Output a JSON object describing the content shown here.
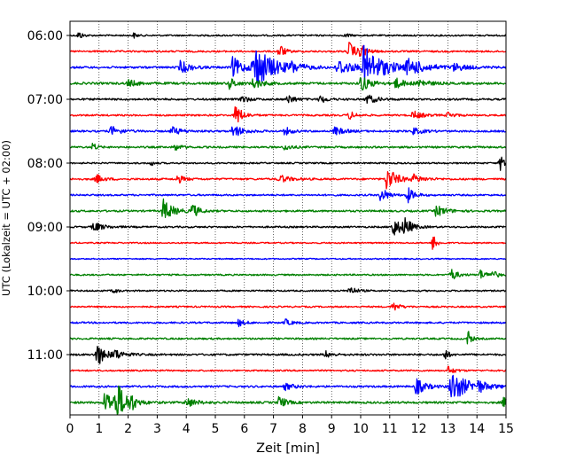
{
  "chart_data": {
    "type": "line",
    "subtype": "helicorder / seismogram drum plot",
    "xlabel": "Zeit  [min]",
    "ylabel": "UTC (Lokalzeit = UTC + 02:00)",
    "xlim": [
      0,
      15
    ],
    "x_ticks": [
      0,
      1,
      2,
      3,
      4,
      5,
      6,
      7,
      8,
      9,
      10,
      11,
      12,
      13,
      14,
      15
    ],
    "x_tick_labels": [
      "0",
      "1",
      "2",
      "3",
      "4",
      "5",
      "6",
      "7",
      "8",
      "9",
      "10",
      "11",
      "12",
      "13",
      "14",
      "15"
    ],
    "vertical_grid": "dotted at each minute",
    "y_tick_labels": [
      {
        "label": "06:00",
        "trace_index": 0
      },
      {
        "label": "07:00",
        "trace_index": 4
      },
      {
        "label": "08:00",
        "trace_index": 8
      },
      {
        "label": "09:00",
        "trace_index": 12
      },
      {
        "label": "10:00",
        "trace_index": 16
      },
      {
        "label": "11:00",
        "trace_index": 20
      }
    ],
    "line_minutes": 15,
    "trace_colors_cycle": [
      "#000000",
      "#ff0000",
      "#0000ff",
      "#008000"
    ],
    "traces": [
      {
        "index": 0,
        "start_utc": "06:00",
        "noise": 0.9,
        "events": [
          {
            "t": 0.3,
            "amp": 5,
            "dur": 0.12
          },
          {
            "t": 2.2,
            "amp": 3,
            "dur": 0.1
          },
          {
            "t": 9.5,
            "amp": 3,
            "dur": 0.1
          }
        ]
      },
      {
        "index": 1,
        "start_utc": "06:15",
        "noise": 1.0,
        "events": [
          {
            "t": 7.2,
            "amp": 10,
            "dur": 0.15
          },
          {
            "t": 9.6,
            "amp": 12,
            "dur": 0.2
          },
          {
            "t": 10.0,
            "amp": 7,
            "dur": 0.2
          }
        ]
      },
      {
        "index": 2,
        "start_utc": "06:30",
        "noise": 1.2,
        "events": [
          {
            "t": 3.8,
            "amp": 8,
            "dur": 0.3
          },
          {
            "t": 5.6,
            "amp": 12,
            "dur": 0.35
          },
          {
            "t": 6.3,
            "amp": 28,
            "dur": 0.6
          },
          {
            "t": 7.6,
            "amp": 5,
            "dur": 0.3
          },
          {
            "t": 9.2,
            "amp": 10,
            "dur": 0.5
          },
          {
            "t": 10.1,
            "amp": 25,
            "dur": 0.6
          },
          {
            "t": 11.6,
            "amp": 9,
            "dur": 0.6
          },
          {
            "t": 13.2,
            "amp": 4,
            "dur": 0.4
          }
        ]
      },
      {
        "index": 3,
        "start_utc": "06:45",
        "noise": 1.3,
        "events": [
          {
            "t": 2.0,
            "amp": 4,
            "dur": 0.3
          },
          {
            "t": 5.5,
            "amp": 7,
            "dur": 0.2
          },
          {
            "t": 6.3,
            "amp": 6,
            "dur": 0.3
          },
          {
            "t": 10.0,
            "amp": 10,
            "dur": 0.3
          },
          {
            "t": 11.2,
            "amp": 6,
            "dur": 0.3
          },
          {
            "t": 12.0,
            "amp": 5,
            "dur": 0.3
          }
        ]
      },
      {
        "index": 4,
        "start_utc": "07:00",
        "noise": 1.1,
        "events": [
          {
            "t": 5.9,
            "amp": 5,
            "dur": 0.2
          },
          {
            "t": 7.5,
            "amp": 6,
            "dur": 0.2
          },
          {
            "t": 8.6,
            "amp": 5,
            "dur": 0.2
          },
          {
            "t": 10.2,
            "amp": 6,
            "dur": 0.3
          }
        ]
      },
      {
        "index": 5,
        "start_utc": "07:15",
        "noise": 1.0,
        "events": [
          {
            "t": 5.7,
            "amp": 14,
            "dur": 0.2
          },
          {
            "t": 9.6,
            "amp": 5,
            "dur": 0.2
          },
          {
            "t": 11.8,
            "amp": 5,
            "dur": 0.3
          },
          {
            "t": 13.0,
            "amp": 4,
            "dur": 0.2
          }
        ]
      },
      {
        "index": 6,
        "start_utc": "07:30",
        "noise": 1.1,
        "events": [
          {
            "t": 1.4,
            "amp": 6,
            "dur": 0.3
          },
          {
            "t": 3.5,
            "amp": 5,
            "dur": 0.3
          },
          {
            "t": 5.6,
            "amp": 8,
            "dur": 0.3
          },
          {
            "t": 7.4,
            "amp": 5,
            "dur": 0.2
          },
          {
            "t": 9.1,
            "amp": 5,
            "dur": 0.3
          },
          {
            "t": 11.8,
            "amp": 4,
            "dur": 0.3
          }
        ]
      },
      {
        "index": 7,
        "start_utc": "07:45",
        "noise": 1.1,
        "events": [
          {
            "t": 0.8,
            "amp": 6,
            "dur": 0.1
          },
          {
            "t": 3.6,
            "amp": 4,
            "dur": 0.2
          },
          {
            "t": 7.4,
            "amp": 4,
            "dur": 0.2
          }
        ]
      },
      {
        "index": 8,
        "start_utc": "08:00",
        "noise": 0.9,
        "events": [
          {
            "t": 2.8,
            "amp": 3,
            "dur": 0.1
          },
          {
            "t": 14.8,
            "amp": 9,
            "dur": 0.3
          }
        ]
      },
      {
        "index": 9,
        "start_utc": "08:15",
        "noise": 1.1,
        "events": [
          {
            "t": 0.9,
            "amp": 6,
            "dur": 0.2
          },
          {
            "t": 3.7,
            "amp": 5,
            "dur": 0.2
          },
          {
            "t": 7.2,
            "amp": 5,
            "dur": 0.3
          },
          {
            "t": 10.9,
            "amp": 15,
            "dur": 0.3
          },
          {
            "t": 11.8,
            "amp": 5,
            "dur": 0.3
          }
        ]
      },
      {
        "index": 10,
        "start_utc": "08:30",
        "noise": 1.0,
        "events": [
          {
            "t": 10.7,
            "amp": 10,
            "dur": 0.2
          },
          {
            "t": 11.6,
            "amp": 10,
            "dur": 0.2
          }
        ]
      },
      {
        "index": 11,
        "start_utc": "08:45",
        "noise": 1.1,
        "events": [
          {
            "t": 3.2,
            "amp": 14,
            "dur": 0.3
          },
          {
            "t": 4.2,
            "amp": 9,
            "dur": 0.2
          },
          {
            "t": 12.6,
            "amp": 7,
            "dur": 0.3
          }
        ]
      },
      {
        "index": 12,
        "start_utc": "09:00",
        "noise": 1.0,
        "events": [
          {
            "t": 0.8,
            "amp": 6,
            "dur": 0.3
          },
          {
            "t": 11.1,
            "amp": 12,
            "dur": 0.3
          },
          {
            "t": 11.5,
            "amp": 10,
            "dur": 0.2
          }
        ]
      },
      {
        "index": 13,
        "start_utc": "09:15",
        "noise": 0.8,
        "events": [
          {
            "t": 12.5,
            "amp": 12,
            "dur": 0.1
          }
        ]
      },
      {
        "index": 14,
        "start_utc": "09:30",
        "noise": 0.7,
        "events": []
      },
      {
        "index": 15,
        "start_utc": "09:45",
        "noise": 0.9,
        "events": [
          {
            "t": 13.1,
            "amp": 8,
            "dur": 0.2
          },
          {
            "t": 14.1,
            "amp": 6,
            "dur": 0.2
          },
          {
            "t": 14.5,
            "amp": 5,
            "dur": 0.2
          }
        ]
      },
      {
        "index": 16,
        "start_utc": "10:00",
        "noise": 0.9,
        "events": [
          {
            "t": 1.5,
            "amp": 4,
            "dur": 0.1
          },
          {
            "t": 9.6,
            "amp": 6,
            "dur": 0.2
          }
        ]
      },
      {
        "index": 17,
        "start_utc": "10:15",
        "noise": 0.9,
        "events": [
          {
            "t": 11.1,
            "amp": 6,
            "dur": 0.2
          }
        ]
      },
      {
        "index": 18,
        "start_utc": "10:30",
        "noise": 1.0,
        "events": [
          {
            "t": 5.8,
            "amp": 4,
            "dur": 0.2
          },
          {
            "t": 7.4,
            "amp": 4,
            "dur": 0.2
          }
        ]
      },
      {
        "index": 19,
        "start_utc": "10:45",
        "noise": 1.0,
        "events": [
          {
            "t": 13.7,
            "amp": 10,
            "dur": 0.1
          }
        ]
      },
      {
        "index": 20,
        "start_utc": "11:00",
        "noise": 1.1,
        "events": [
          {
            "t": 0.9,
            "amp": 16,
            "dur": 0.25
          },
          {
            "t": 1.5,
            "amp": 6,
            "dur": 0.3
          },
          {
            "t": 8.8,
            "amp": 4,
            "dur": 0.2
          },
          {
            "t": 12.9,
            "amp": 8,
            "dur": 0.1
          }
        ]
      },
      {
        "index": 21,
        "start_utc": "11:15",
        "noise": 0.9,
        "events": [
          {
            "t": 13.0,
            "amp": 5,
            "dur": 0.2
          }
        ]
      },
      {
        "index": 22,
        "start_utc": "11:30",
        "noise": 1.1,
        "events": [
          {
            "t": 7.4,
            "amp": 4,
            "dur": 0.3
          },
          {
            "t": 11.9,
            "amp": 10,
            "dur": 0.3
          },
          {
            "t": 13.1,
            "amp": 20,
            "dur": 0.5
          },
          {
            "t": 14.0,
            "amp": 6,
            "dur": 0.3
          }
        ]
      },
      {
        "index": 23,
        "start_utc": "11:45",
        "noise": 1.2,
        "events": [
          {
            "t": 1.2,
            "amp": 14,
            "dur": 0.4
          },
          {
            "t": 1.6,
            "amp": 20,
            "dur": 0.3
          },
          {
            "t": 2.1,
            "amp": 8,
            "dur": 0.1
          },
          {
            "t": 4.0,
            "amp": 6,
            "dur": 0.3
          },
          {
            "t": 7.2,
            "amp": 8,
            "dur": 0.2
          },
          {
            "t": 14.9,
            "amp": 6,
            "dur": 0.2
          }
        ]
      }
    ]
  }
}
